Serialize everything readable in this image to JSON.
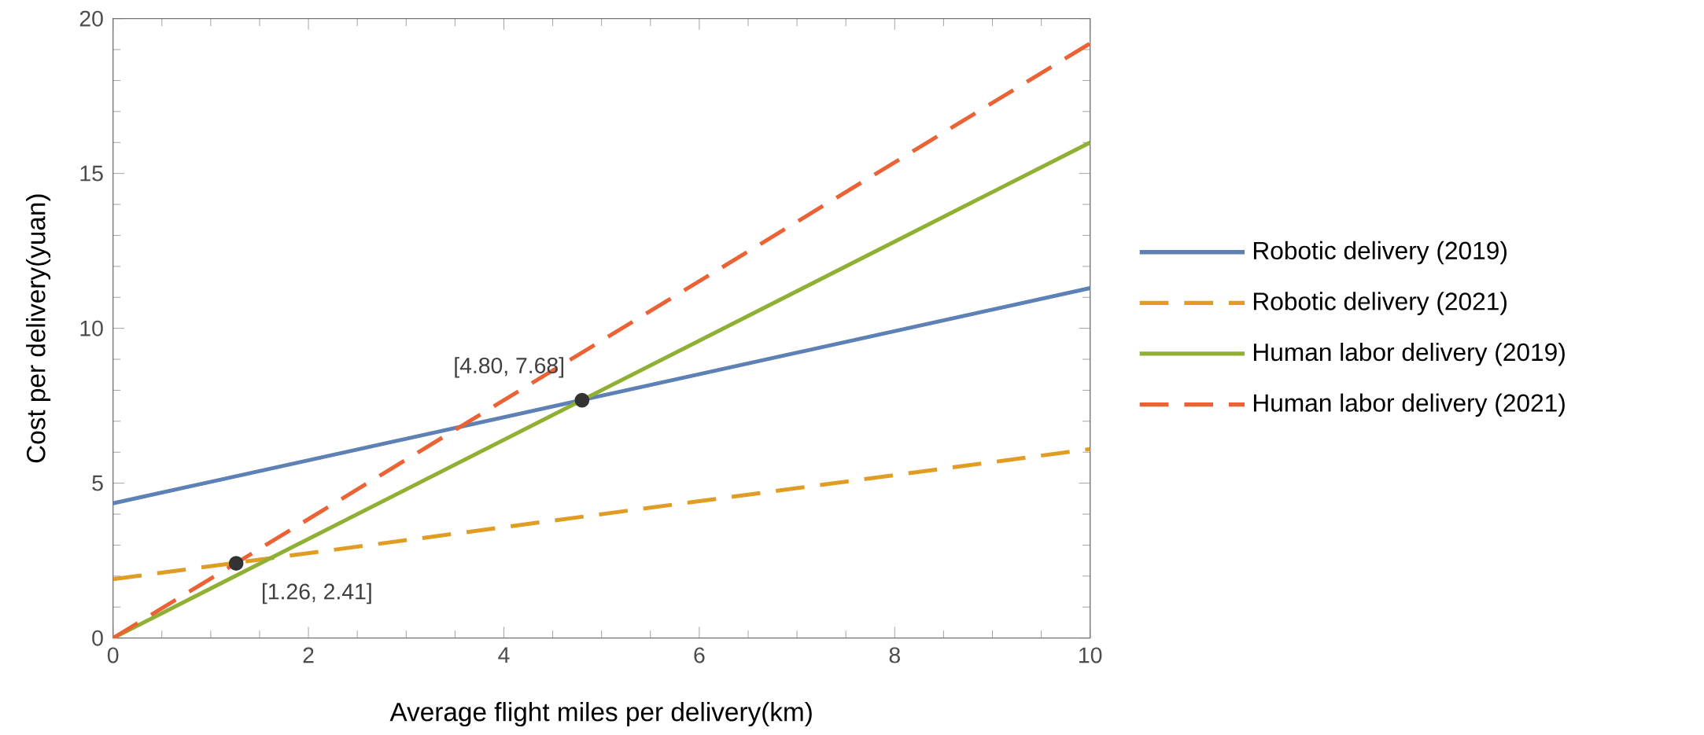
{
  "chart_data": {
    "type": "line",
    "xlabel": "Average flight miles per delivery(km)",
    "ylabel": "Cost per delivery(yuan)",
    "xlim": [
      0,
      10
    ],
    "ylim": [
      0,
      20
    ],
    "xticks": [
      0,
      2,
      4,
      6,
      8,
      10
    ],
    "yticks": [
      0,
      5,
      10,
      15,
      20
    ],
    "grid": false,
    "legend": "right",
    "series": [
      {
        "name": "Robotic delivery (2019)",
        "color": "#5e81b5",
        "line_style": "solid",
        "x": [
          0,
          10
        ],
        "values": [
          4.35,
          11.3
        ]
      },
      {
        "name": "Robotic delivery (2021)",
        "color": "#e19c24",
        "line_style": "dashed",
        "x": [
          0,
          10
        ],
        "values": [
          1.9,
          6.1
        ]
      },
      {
        "name": "Human labor delivery (2019)",
        "color": "#8fb032",
        "line_style": "solid",
        "x": [
          0,
          10
        ],
        "values": [
          0,
          16
        ]
      },
      {
        "name": "Human labor delivery (2021)",
        "color": "#eb6235",
        "line_style": "dashed",
        "x": [
          0,
          10
        ],
        "values": [
          0,
          19.2
        ]
      },
      {
        "type": "scatter",
        "color": "#333333",
        "marker": "circle",
        "x": [
          1.26,
          4.8
        ],
        "values": [
          2.41,
          7.68
        ]
      }
    ],
    "annotations": [
      {
        "text": "[1.26, 2.41]",
        "x": 1.26,
        "y": 2.41
      },
      {
        "text": "[4.80, 7.68]",
        "x": 4.8,
        "y": 7.68
      }
    ]
  }
}
